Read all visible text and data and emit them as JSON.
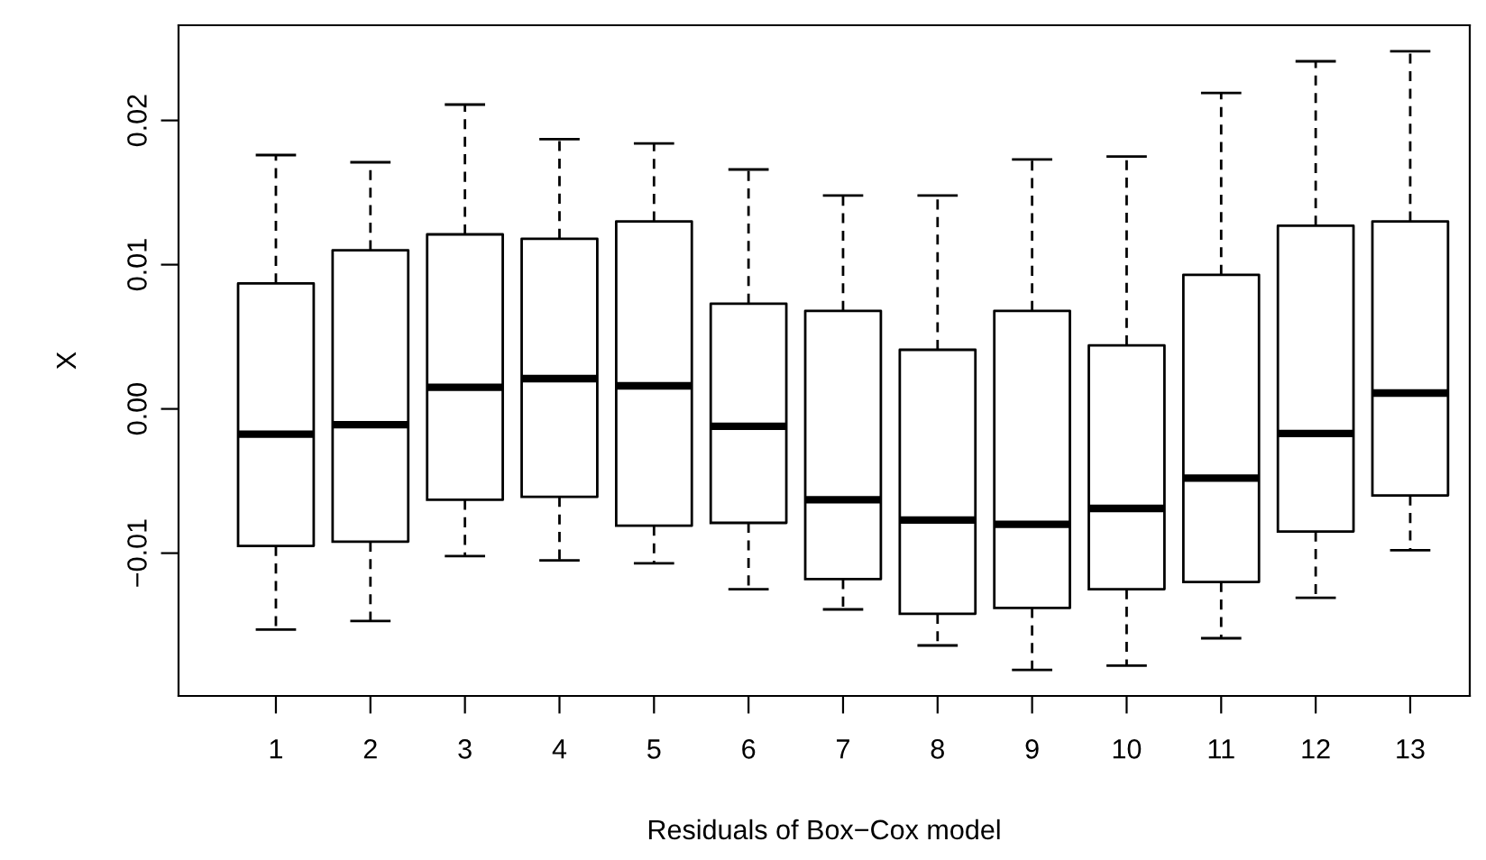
{
  "chart_data": {
    "type": "box",
    "xlabel": "Residuals of Box−Cox model",
    "ylabel": "X",
    "categories": [
      "1",
      "2",
      "3",
      "4",
      "5",
      "6",
      "7",
      "8",
      "9",
      "10",
      "11",
      "12",
      "13"
    ],
    "boxes": [
      {
        "low": -0.0153,
        "q1": -0.0095,
        "median": -0.00175,
        "q3": 0.0087,
        "high": 0.0176
      },
      {
        "low": -0.0147,
        "q1": -0.0092,
        "median": -0.0011,
        "q3": 0.011,
        "high": 0.0171
      },
      {
        "low": -0.0102,
        "q1": -0.0063,
        "median": 0.0015,
        "q3": 0.0121,
        "high": 0.0211
      },
      {
        "low": -0.0105,
        "q1": -0.0061,
        "median": 0.0021,
        "q3": 0.0118,
        "high": 0.0187
      },
      {
        "low": -0.0107,
        "q1": -0.0081,
        "median": 0.0016,
        "q3": 0.013,
        "high": 0.0184
      },
      {
        "low": -0.0125,
        "q1": -0.0079,
        "median": -0.0012,
        "q3": 0.0073,
        "high": 0.0166
      },
      {
        "low": -0.0139,
        "q1": -0.0118,
        "median": -0.0063,
        "q3": 0.0068,
        "high": 0.0148
      },
      {
        "low": -0.0164,
        "q1": -0.0142,
        "median": -0.0077,
        "q3": 0.0041,
        "high": 0.0148
      },
      {
        "low": -0.0181,
        "q1": -0.0138,
        "median": -0.008,
        "q3": 0.0068,
        "high": 0.0173
      },
      {
        "low": -0.0178,
        "q1": -0.0125,
        "median": -0.0069,
        "q3": 0.0044,
        "high": 0.0175
      },
      {
        "low": -0.0159,
        "q1": -0.012,
        "median": -0.0048,
        "q3": 0.0093,
        "high": 0.0219
      },
      {
        "low": -0.0131,
        "q1": -0.0085,
        "median": -0.0017,
        "q3": 0.0127,
        "high": 0.0241
      },
      {
        "low": -0.0098,
        "q1": -0.006,
        "median": 0.0011,
        "q3": 0.013,
        "high": 0.0248
      }
    ],
    "ylim": [
      -0.0199,
      0.0266
    ],
    "yticks": [
      {
        "value": -0.01,
        "label": "−0.01"
      },
      {
        "value": 0.0,
        "label": "0.00"
      },
      {
        "value": 0.01,
        "label": "0.01"
      },
      {
        "value": 0.02,
        "label": "0.02"
      }
    ],
    "line_style": "dashed",
    "grid": false,
    "legend": false
  }
}
